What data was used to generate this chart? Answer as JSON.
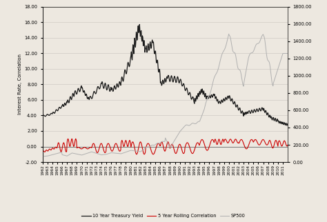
{
  "ylabel_left": "Interest Rate, Correlation",
  "ylim_left": [
    -2.0,
    18.0
  ],
  "ylim_right": [
    0.0,
    1800.0
  ],
  "yticks_left": [
    -2.0,
    0.0,
    2.0,
    4.0,
    6.0,
    8.0,
    10.0,
    12.0,
    14.0,
    16.0,
    18.0
  ],
  "yticks_right": [
    0.0,
    200.0,
    400.0,
    600.0,
    800.0,
    1000.0,
    1200.0,
    1400.0,
    1600.0,
    1800.0
  ],
  "background_color": "#ede8e0",
  "grid_color": "#d8d3cc",
  "line_treasury_color": "#1a1a1a",
  "line_correlation_color": "#cc0000",
  "line_sp500_color": "#b0b0b0",
  "legend_labels": [
    "10 Year Treasury Yield",
    "5 Year Rolling Correlation",
    "SP500"
  ],
  "xlim": [
    1962,
    2012
  ],
  "xtick_years": [
    1962,
    1963,
    1964,
    1965,
    1966,
    1967,
    1968,
    1969,
    1970,
    1971,
    1972,
    1973,
    1974,
    1975,
    1976,
    1977,
    1978,
    1979,
    1980,
    1981,
    1982,
    1983,
    1984,
    1985,
    1986,
    1987,
    1988,
    1989,
    1990,
    1991,
    1992,
    1993,
    1994,
    1995,
    1996,
    1997,
    1998,
    1999,
    2000,
    2001,
    2002,
    2003,
    2004,
    2005,
    2006,
    2007,
    2008,
    2009,
    2010,
    2011
  ]
}
